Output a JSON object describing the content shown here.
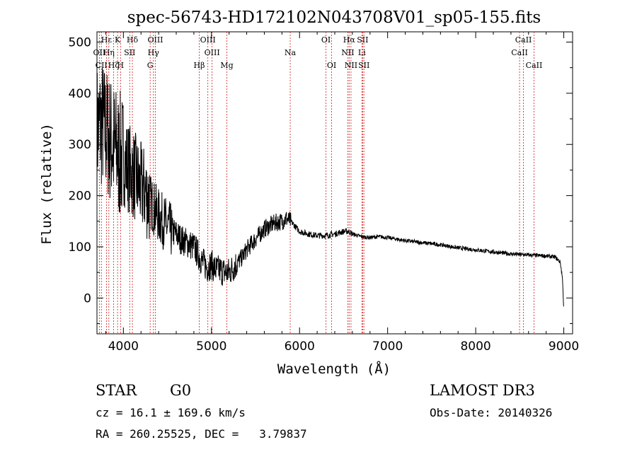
{
  "chart_data": {
    "type": "line",
    "title": "spec-56743-HD172102N043708V01_sp05-155.fits",
    "xlabel": "Wavelength (Å)",
    "ylabel": "Flux (relative)",
    "xlim": [
      3700,
      9100
    ],
    "ylim": [
      -70,
      520
    ],
    "x_ticks": [
      4000,
      5000,
      6000,
      7000,
      8000,
      9000
    ],
    "y_ticks": [
      0,
      100,
      200,
      300,
      400,
      500
    ],
    "series": [
      {
        "name": "flux",
        "x": [
          3700,
          3760,
          3820,
          3880,
          3940,
          4000,
          4060,
          4120,
          4180,
          4240,
          4300,
          4350,
          4400,
          4450,
          4500,
          4550,
          4600,
          4650,
          4700,
          4750,
          4800,
          4850,
          4900,
          4950,
          5000,
          5050,
          5100,
          5150,
          5200,
          5250,
          5300,
          5350,
          5400,
          5450,
          5500,
          5550,
          5600,
          5650,
          5700,
          5750,
          5800,
          5850,
          5900,
          5950,
          6000,
          6100,
          6200,
          6300,
          6400,
          6500,
          6560,
          6600,
          6700,
          6800,
          6900,
          7000,
          7200,
          7400,
          7600,
          7800,
          8000,
          8200,
          8400,
          8600,
          8800,
          8900,
          8960,
          9000
        ],
        "y": [
          330,
          340,
          320,
          300,
          280,
          270,
          255,
          240,
          220,
          210,
          190,
          175,
          160,
          150,
          140,
          130,
          125,
          115,
          110,
          105,
          100,
          85,
          70,
          60,
          65,
          55,
          55,
          50,
          50,
          60,
          70,
          80,
          95,
          105,
          115,
          125,
          135,
          140,
          145,
          148,
          150,
          155,
          150,
          140,
          130,
          125,
          122,
          122,
          125,
          130,
          130,
          125,
          120,
          118,
          120,
          118,
          112,
          108,
          104,
          98,
          94,
          90,
          86,
          84,
          82,
          80,
          70,
          20
        ]
      }
    ],
    "emission_lines": [
      {
        "label": "Hδ",
        "wavelength": 4102,
        "row": 1
      },
      {
        "label": "OIII",
        "wavelength": 4363,
        "row": 1
      },
      {
        "label": "Hγ",
        "wavelength": 4341,
        "row": 2
      },
      {
        "label": "OIII",
        "wavelength": 4959,
        "row": 1
      },
      {
        "label": "OIII",
        "wavelength": 5007,
        "row": 2
      },
      {
        "label": "Hβ",
        "wavelength": 4861,
        "row": 3
      },
      {
        "label": "OI",
        "wavelength": 6300,
        "row": 1
      },
      {
        "label": "OI",
        "wavelength": 6364,
        "row": 3
      },
      {
        "label": "Hα",
        "wavelength": 6563,
        "row": 1
      },
      {
        "label": "SII",
        "wavelength": 6716,
        "row": 1
      },
      {
        "label": "NII",
        "wavelength": 6548,
        "row": 2
      },
      {
        "label": "Li",
        "wavelength": 6708,
        "row": 2
      },
      {
        "label": "NII",
        "wavelength": 6584,
        "row": 3
      },
      {
        "label": "SII",
        "wavelength": 6731,
        "row": 3
      }
    ],
    "absorption_lines": [
      {
        "label": "K",
        "wavelength": 3934,
        "row": 1
      },
      {
        "label": "H",
        "wavelength": 3968,
        "row": 3
      },
      {
        "label": "G",
        "wavelength": 4304,
        "row": 3
      },
      {
        "label": "Mg",
        "wavelength": 5175,
        "row": 3
      },
      {
        "label": "Na",
        "wavelength": 5894,
        "row": 2
      },
      {
        "label": "CaII",
        "wavelength": 8498,
        "row": 2
      },
      {
        "label": "CaII",
        "wavelength": 8542,
        "row": 1
      },
      {
        "label": "CaII",
        "wavelength": 8662,
        "row": 3
      }
    ],
    "crowded_labels": [
      {
        "label": "Hε",
        "wavelength": 3808,
        "row": 1
      },
      {
        "label": "OII",
        "wavelength": 3727,
        "row": 2
      },
      {
        "label": "Hη",
        "wavelength": 3835,
        "row": 2
      },
      {
        "label": "SII",
        "wavelength": 4072,
        "row": 2
      },
      {
        "label": "CII",
        "wavelength": 3750,
        "row": 3
      },
      {
        "label": "Hζ",
        "wavelength": 3889,
        "row": 3
      }
    ]
  },
  "info": {
    "object_class": "STAR",
    "subclass": "G0",
    "survey": "LAMOST DR3",
    "redshift_text": "cz = 16.1 ± 169.6 km/s",
    "obs_date": "Obs-Date: 20140326",
    "coords": "RA = 260.25525, DEC =   3.79837"
  },
  "colors": {
    "line_marker": "#d11a1a",
    "spectrum": "#000000",
    "axes": "#000000",
    "background": "#ffffff"
  }
}
